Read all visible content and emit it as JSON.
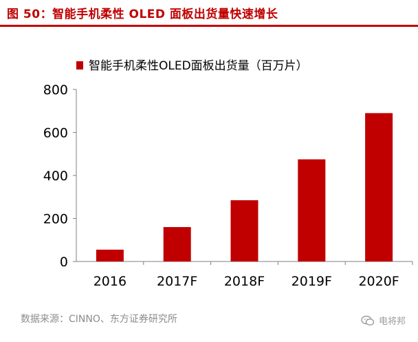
{
  "header": {
    "title": "图 50：智能手机柔性 OLED 面板出货量快速增长"
  },
  "chart_data": {
    "type": "bar",
    "categories": [
      "2016",
      "2017F",
      "2018F",
      "2019F",
      "2020F"
    ],
    "series": [
      {
        "name": "智能手机柔性OLED面板出货量（百万片）",
        "values": [
          55,
          160,
          285,
          475,
          690
        ]
      }
    ],
    "yticks": [
      "0",
      "200",
      "400",
      "600",
      "800"
    ],
    "ylim": [
      0,
      800
    ],
    "grid": false,
    "legend": "top",
    "colors": {
      "bar": "#c00000",
      "axis": "#7f7f7f",
      "title": "#c00000"
    }
  },
  "footer": {
    "source": "数据来源：CINNO、东方证券研究所",
    "watermark": "电将邦",
    "watermark_icon": "wechat-icon"
  }
}
